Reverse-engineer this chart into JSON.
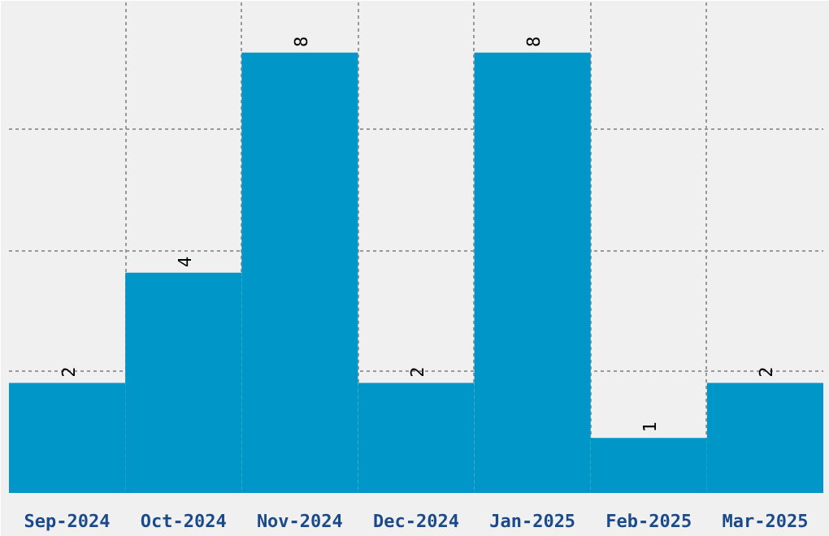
{
  "chart_data": {
    "type": "bar",
    "categories": [
      "Sep-2024",
      "Oct-2024",
      "Nov-2024",
      "Dec-2024",
      "Jan-2025",
      "Feb-2025",
      "Mar-2025"
    ],
    "values": [
      2,
      4,
      8,
      2,
      8,
      1,
      2
    ],
    "color": "#0096c8",
    "ylim": [
      0,
      8.94
    ],
    "yticks": [
      {
        "value": 2.2,
        "label": null
      },
      {
        "value": 4.4,
        "label": null
      },
      {
        "value": 6.6,
        "label": null
      }
    ],
    "tick_labels": "x",
    "grid": true,
    "data_labels": true
  }
}
